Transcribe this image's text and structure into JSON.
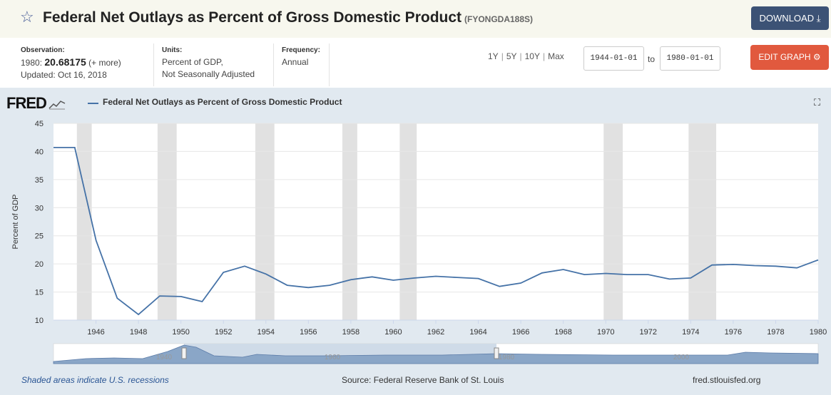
{
  "header": {
    "title": "Federal Net Outlays as Percent of Gross Domestic Product",
    "series_id": "(FYONGDA188S)",
    "download_label": "DOWNLOAD",
    "download_icon": "download-icon",
    "star_icon": "star-icon"
  },
  "info": {
    "observation_label": "Observation:",
    "observation_year": "1980:",
    "observation_value": "20.68175",
    "observation_more": "(+ more)",
    "updated": "Updated: Oct 16, 2018",
    "units_label": "Units:",
    "units_line1": "Percent of GDP,",
    "units_line2": "Not Seasonally Adjusted",
    "frequency_label": "Frequency:",
    "frequency_value": "Annual",
    "ranges": [
      "1Y",
      "5Y",
      "10Y",
      "Max"
    ],
    "start_date": "1944-01-01",
    "to_label": "to",
    "end_date": "1980-01-01",
    "edit_label": "EDIT GRAPH"
  },
  "footer": {
    "recession_note": "Shaded areas indicate U.S. recessions",
    "source": "Source: Federal Reserve Bank of St. Louis",
    "site": "fred.stlouisfed.org"
  },
  "logo_text": "FRED",
  "colors": {
    "line": "#4572a7",
    "recession": "#e1e1e1",
    "download_bg": "#3c5275",
    "edit_bg": "#e1593e",
    "chart_bg": "#e1e9f0"
  },
  "chart_data": {
    "type": "line",
    "title": "Federal Net Outlays as Percent of Gross Domestic Product",
    "legend": "Federal Net Outlays as Percent of Gross Domestic Product",
    "xlabel": "",
    "ylabel": "Percent of GDP",
    "xlim": [
      1944,
      1980
    ],
    "ylim": [
      10,
      45
    ],
    "yticks": [
      10,
      15,
      20,
      25,
      30,
      35,
      40,
      45
    ],
    "xticks": [
      1946,
      1948,
      1950,
      1952,
      1954,
      1956,
      1958,
      1960,
      1962,
      1964,
      1966,
      1968,
      1970,
      1972,
      1974,
      1976,
      1978,
      1980
    ],
    "x": [
      1944,
      1945,
      1946,
      1947,
      1948,
      1949,
      1950,
      1951,
      1952,
      1953,
      1954,
      1955,
      1956,
      1957,
      1958,
      1959,
      1960,
      1961,
      1962,
      1963,
      1964,
      1965,
      1966,
      1967,
      1968,
      1969,
      1970,
      1971,
      1972,
      1973,
      1974,
      1975,
      1976,
      1977,
      1978,
      1979,
      1980
    ],
    "values": [
      40.7,
      40.7,
      24.2,
      13.9,
      11.0,
      14.3,
      14.2,
      13.3,
      18.5,
      19.6,
      18.2,
      16.2,
      15.8,
      16.2,
      17.2,
      17.7,
      17.1,
      17.5,
      17.8,
      17.6,
      17.4,
      16.0,
      16.6,
      18.4,
      19.0,
      18.1,
      18.3,
      18.1,
      18.1,
      17.3,
      17.5,
      19.8,
      19.9,
      19.7,
      19.6,
      19.3,
      20.7
    ],
    "recessions": [
      [
        1945.1,
        1945.8
      ],
      [
        1948.9,
        1949.8
      ],
      [
        1953.5,
        1954.4
      ],
      [
        1957.6,
        1958.3
      ],
      [
        1960.3,
        1961.1
      ],
      [
        1969.9,
        1970.8
      ],
      [
        1973.9,
        1975.2
      ]
    ],
    "grid": true,
    "navigator_labels": [
      "1940",
      "1960",
      "1980",
      "2000"
    ]
  }
}
